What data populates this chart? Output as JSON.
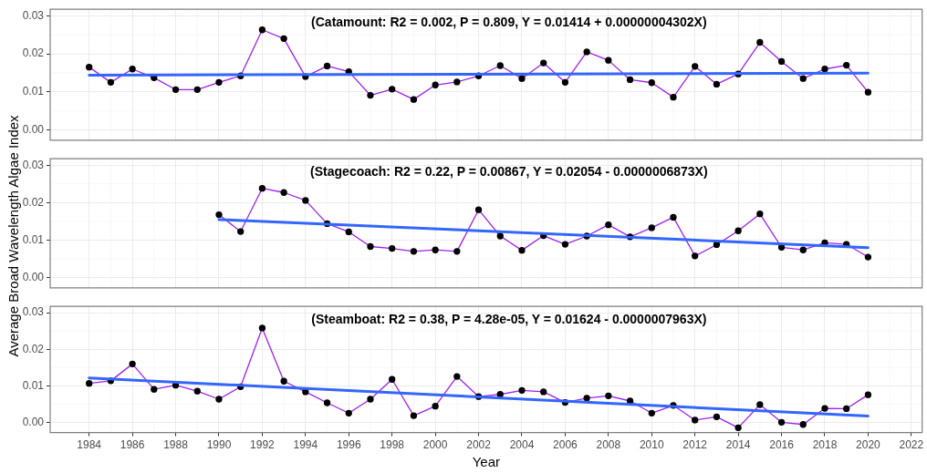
{
  "chart_data": [
    {
      "type": "line",
      "annotations": [
        "(Catamount: R2 = 0.002, P = 0.809, Y = 0.01414 + 0.00000004302X)"
      ],
      "xlim": [
        1982.2,
        2022.5
      ],
      "xticks": [
        1984,
        1986,
        1988,
        1990,
        1992,
        1994,
        1996,
        1998,
        2000,
        2002,
        2004,
        2006,
        2008,
        2010,
        2012,
        2014,
        2016,
        2018,
        2020,
        2022
      ],
      "ylim": [
        -0.0027,
        0.0317
      ],
      "yticks": [
        {
          "value": 0,
          "label": "0.00"
        },
        {
          "value": 0.01,
          "label": "0.01"
        },
        {
          "value": 0.02,
          "label": "0.02"
        },
        {
          "value": 0.03,
          "label": "0.03"
        }
      ],
      "grid": true,
      "legend": false,
      "tick_labels": "y",
      "marker": "circle",
      "series": [
        {
          "color": "#a020f0",
          "x": [
            1984,
            1985,
            1986,
            1987,
            1988,
            1989,
            1990,
            1991,
            1992,
            1993,
            1994,
            1995,
            1996,
            1997,
            1998,
            1999,
            2000,
            2001,
            2002,
            2003,
            2004,
            2005,
            2006,
            2007,
            2008,
            2009,
            2010,
            2011,
            2012,
            2013,
            2014,
            2015,
            2016,
            2017,
            2018,
            2019,
            2020
          ],
          "values": [
            0.0165,
            0.0125,
            0.016,
            0.0137,
            0.0106,
            0.0106,
            0.0125,
            0.0142,
            0.0263,
            0.024,
            0.014,
            0.0168,
            0.0153,
            0.0091,
            0.0107,
            0.008,
            0.0118,
            0.0126,
            0.0142,
            0.0169,
            0.0135,
            0.0176,
            0.0125,
            0.0205,
            0.0183,
            0.0132,
            0.0124,
            0.0086,
            0.0167,
            0.012,
            0.0147,
            0.023,
            0.018,
            0.0135,
            0.016,
            0.017,
            0.0099
          ]
        },
        {
          "type": "line",
          "marker": "none",
          "color": "#3366ff",
          "x": [
            1984,
            2020
          ],
          "values": [
            0.0144,
            0.0149
          ]
        }
      ]
    },
    {
      "type": "line",
      "annotations": [
        "(Stagecoach: R2 = 0.22, P = 0.00867, Y = 0.02054 - 0.0000006873X)"
      ],
      "ylabel": "Average Broad Wavelength Algae Index",
      "xlim": [
        1982.2,
        2022.5
      ],
      "xticks": [
        1984,
        1986,
        1988,
        1990,
        1992,
        1994,
        1996,
        1998,
        2000,
        2002,
        2004,
        2006,
        2008,
        2010,
        2012,
        2014,
        2016,
        2018,
        2020,
        2022
      ],
      "ylim": [
        -0.0027,
        0.0317
      ],
      "yticks": [
        {
          "value": 0,
          "label": "0.00"
        },
        {
          "value": 0.01,
          "label": "0.01"
        },
        {
          "value": 0.02,
          "label": "0.02"
        },
        {
          "value": 0.03,
          "label": "0.03"
        }
      ],
      "grid": true,
      "legend": false,
      "tick_labels": "y",
      "marker": "circle",
      "series": [
        {
          "color": "#a020f0",
          "x": [
            1990,
            1991,
            1992,
            1993,
            1994,
            1995,
            1996,
            1997,
            1998,
            1999,
            2000,
            2001,
            2002,
            2003,
            2004,
            2005,
            2006,
            2007,
            2008,
            2009,
            2010,
            2011,
            2012,
            2013,
            2014,
            2015,
            2016,
            2017,
            2018,
            2019,
            2020
          ],
          "values": [
            0.0168,
            0.0123,
            0.0238,
            0.0227,
            0.0206,
            0.0144,
            0.0122,
            0.0083,
            0.0078,
            0.007,
            0.0074,
            0.007,
            0.0181,
            0.0111,
            0.0073,
            0.0112,
            0.0089,
            0.0111,
            0.0141,
            0.0109,
            0.0133,
            0.0161,
            0.0058,
            0.0088,
            0.0125,
            0.017,
            0.0081,
            0.0074,
            0.0093,
            0.0089,
            0.0055
          ]
        },
        {
          "type": "line",
          "marker": "none",
          "color": "#3366ff",
          "x": [
            1990,
            2020
          ],
          "values": [
            0.0155,
            0.008
          ]
        }
      ]
    },
    {
      "type": "line",
      "annotations": [
        "(Steamboat: R2 = 0.38, P = 4.28e-05, Y = 0.01624 - 0.0000007963X)"
      ],
      "xlabel": "Year",
      "xlim": [
        1982.2,
        2022.5
      ],
      "xticks": [
        1984,
        1986,
        1988,
        1990,
        1992,
        1994,
        1996,
        1998,
        2000,
        2002,
        2004,
        2006,
        2008,
        2010,
        2012,
        2014,
        2016,
        2018,
        2020,
        2022
      ],
      "ylim": [
        -0.0027,
        0.0317
      ],
      "yticks": [
        {
          "value": 0,
          "label": "0.00"
        },
        {
          "value": 0.01,
          "label": "0.01"
        },
        {
          "value": 0.02,
          "label": "0.02"
        },
        {
          "value": 0.03,
          "label": "0.03"
        }
      ],
      "grid": true,
      "legend": false,
      "marker": "circle",
      "series": [
        {
          "color": "#a020f0",
          "x": [
            1984,
            1985,
            1986,
            1987,
            1988,
            1989,
            1990,
            1991,
            1992,
            1993,
            1994,
            1995,
            1996,
            1997,
            1998,
            1999,
            2000,
            2001,
            2002,
            2003,
            2004,
            2005,
            2006,
            2007,
            2008,
            2009,
            2010,
            2011,
            2012,
            2013,
            2014,
            2015,
            2016,
            2017,
            2018,
            2019,
            2020
          ],
          "values": [
            0.0107,
            0.0114,
            0.016,
            0.0091,
            0.0102,
            0.0086,
            0.0064,
            0.0098,
            0.0258,
            0.0113,
            0.0084,
            0.0054,
            0.0026,
            0.0064,
            0.0118,
            0.0019,
            0.0045,
            0.0126,
            0.0071,
            0.0077,
            0.0088,
            0.0084,
            0.0055,
            0.0067,
            0.0073,
            0.0059,
            0.0026,
            0.0047,
            0.0007,
            0.0016,
            -0.0014,
            0.0049,
            0.0001,
            -0.0005,
            0.0039,
            0.0038,
            0.0076
          ]
        },
        {
          "type": "line",
          "marker": "none",
          "color": "#3366ff",
          "x": [
            1984,
            2020
          ],
          "values": [
            0.0122,
            0.0018
          ]
        }
      ]
    }
  ]
}
